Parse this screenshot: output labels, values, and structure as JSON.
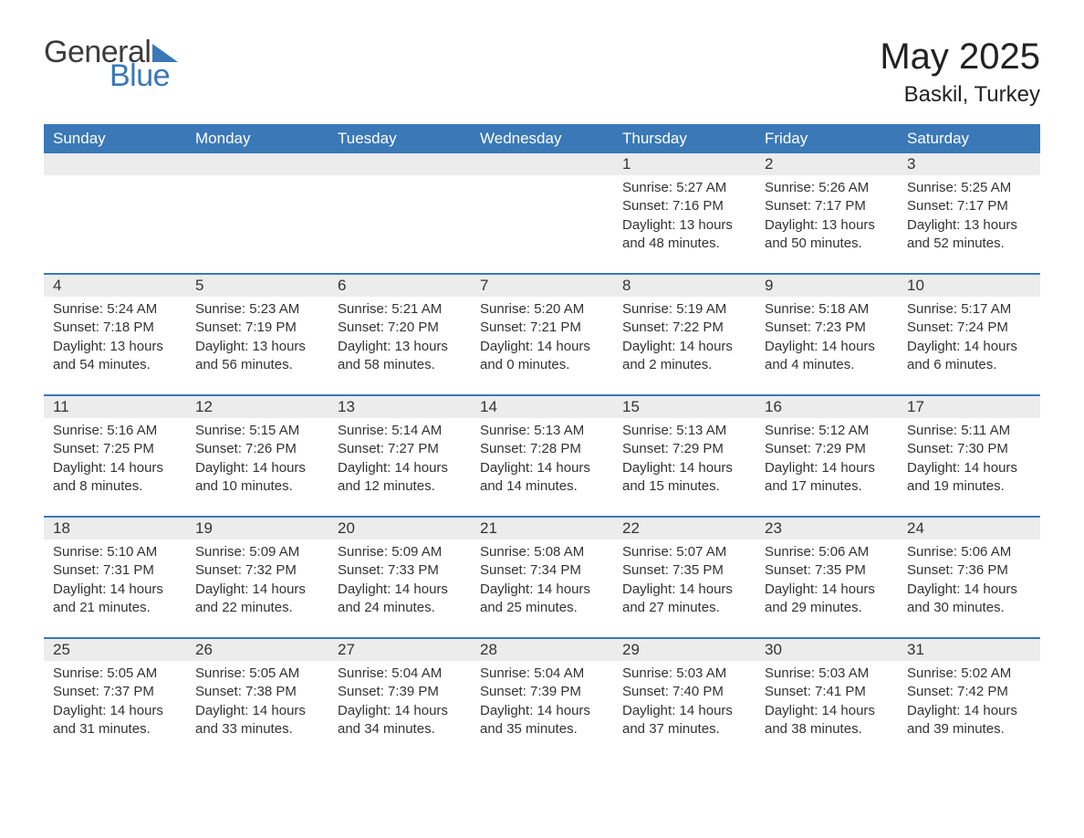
{
  "logo": {
    "word1": "General",
    "word2": "Blue"
  },
  "title": "May 2025",
  "location": "Baskil, Turkey",
  "colors": {
    "header_bg": "#3a78b8",
    "header_text": "#ffffff",
    "daynum_bg": "#ececec",
    "border": "#3a78b8",
    "text": "#333333",
    "logo_gray": "#3b3b3b",
    "logo_blue": "#3a78b8",
    "page_bg": "#ffffff"
  },
  "fonts": {
    "title_size_pt": 30,
    "location_size_pt": 18,
    "dayheader_size_pt": 13,
    "body_size_pt": 11
  },
  "day_headers": [
    "Sunday",
    "Monday",
    "Tuesday",
    "Wednesday",
    "Thursday",
    "Friday",
    "Saturday"
  ],
  "weeks": [
    [
      null,
      null,
      null,
      null,
      {
        "n": "1",
        "sunrise": "5:27 AM",
        "sunset": "7:16 PM",
        "dh": "13",
        "dm": "48"
      },
      {
        "n": "2",
        "sunrise": "5:26 AM",
        "sunset": "7:17 PM",
        "dh": "13",
        "dm": "50"
      },
      {
        "n": "3",
        "sunrise": "5:25 AM",
        "sunset": "7:17 PM",
        "dh": "13",
        "dm": "52"
      }
    ],
    [
      {
        "n": "4",
        "sunrise": "5:24 AM",
        "sunset": "7:18 PM",
        "dh": "13",
        "dm": "54"
      },
      {
        "n": "5",
        "sunrise": "5:23 AM",
        "sunset": "7:19 PM",
        "dh": "13",
        "dm": "56"
      },
      {
        "n": "6",
        "sunrise": "5:21 AM",
        "sunset": "7:20 PM",
        "dh": "13",
        "dm": "58"
      },
      {
        "n": "7",
        "sunrise": "5:20 AM",
        "sunset": "7:21 PM",
        "dh": "14",
        "dm": "0"
      },
      {
        "n": "8",
        "sunrise": "5:19 AM",
        "sunset": "7:22 PM",
        "dh": "14",
        "dm": "2"
      },
      {
        "n": "9",
        "sunrise": "5:18 AM",
        "sunset": "7:23 PM",
        "dh": "14",
        "dm": "4"
      },
      {
        "n": "10",
        "sunrise": "5:17 AM",
        "sunset": "7:24 PM",
        "dh": "14",
        "dm": "6"
      }
    ],
    [
      {
        "n": "11",
        "sunrise": "5:16 AM",
        "sunset": "7:25 PM",
        "dh": "14",
        "dm": "8"
      },
      {
        "n": "12",
        "sunrise": "5:15 AM",
        "sunset": "7:26 PM",
        "dh": "14",
        "dm": "10"
      },
      {
        "n": "13",
        "sunrise": "5:14 AM",
        "sunset": "7:27 PM",
        "dh": "14",
        "dm": "12"
      },
      {
        "n": "14",
        "sunrise": "5:13 AM",
        "sunset": "7:28 PM",
        "dh": "14",
        "dm": "14"
      },
      {
        "n": "15",
        "sunrise": "5:13 AM",
        "sunset": "7:29 PM",
        "dh": "14",
        "dm": "15"
      },
      {
        "n": "16",
        "sunrise": "5:12 AM",
        "sunset": "7:29 PM",
        "dh": "14",
        "dm": "17"
      },
      {
        "n": "17",
        "sunrise": "5:11 AM",
        "sunset": "7:30 PM",
        "dh": "14",
        "dm": "19"
      }
    ],
    [
      {
        "n": "18",
        "sunrise": "5:10 AM",
        "sunset": "7:31 PM",
        "dh": "14",
        "dm": "21"
      },
      {
        "n": "19",
        "sunrise": "5:09 AM",
        "sunset": "7:32 PM",
        "dh": "14",
        "dm": "22"
      },
      {
        "n": "20",
        "sunrise": "5:09 AM",
        "sunset": "7:33 PM",
        "dh": "14",
        "dm": "24"
      },
      {
        "n": "21",
        "sunrise": "5:08 AM",
        "sunset": "7:34 PM",
        "dh": "14",
        "dm": "25"
      },
      {
        "n": "22",
        "sunrise": "5:07 AM",
        "sunset": "7:35 PM",
        "dh": "14",
        "dm": "27"
      },
      {
        "n": "23",
        "sunrise": "5:06 AM",
        "sunset": "7:35 PM",
        "dh": "14",
        "dm": "29"
      },
      {
        "n": "24",
        "sunrise": "5:06 AM",
        "sunset": "7:36 PM",
        "dh": "14",
        "dm": "30"
      }
    ],
    [
      {
        "n": "25",
        "sunrise": "5:05 AM",
        "sunset": "7:37 PM",
        "dh": "14",
        "dm": "31"
      },
      {
        "n": "26",
        "sunrise": "5:05 AM",
        "sunset": "7:38 PM",
        "dh": "14",
        "dm": "33"
      },
      {
        "n": "27",
        "sunrise": "5:04 AM",
        "sunset": "7:39 PM",
        "dh": "14",
        "dm": "34"
      },
      {
        "n": "28",
        "sunrise": "5:04 AM",
        "sunset": "7:39 PM",
        "dh": "14",
        "dm": "35"
      },
      {
        "n": "29",
        "sunrise": "5:03 AM",
        "sunset": "7:40 PM",
        "dh": "14",
        "dm": "37"
      },
      {
        "n": "30",
        "sunrise": "5:03 AM",
        "sunset": "7:41 PM",
        "dh": "14",
        "dm": "38"
      },
      {
        "n": "31",
        "sunrise": "5:02 AM",
        "sunset": "7:42 PM",
        "dh": "14",
        "dm": "39"
      }
    ]
  ],
  "labels": {
    "sunrise": "Sunrise:",
    "sunset": "Sunset:",
    "daylight_pre": "Daylight:",
    "hours_word": "hours",
    "and_word": "and",
    "minutes_word": "minutes."
  }
}
